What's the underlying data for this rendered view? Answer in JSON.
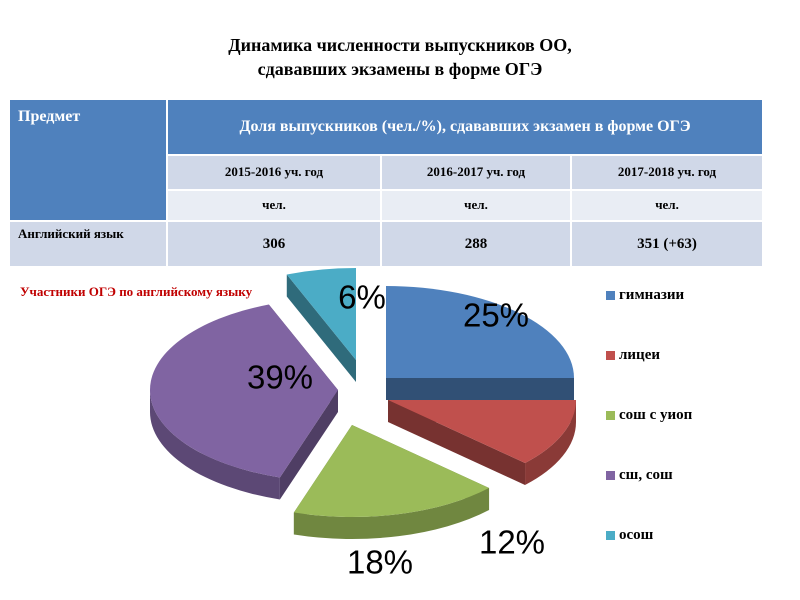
{
  "title": {
    "line1": "Динамика численности выпускников ОО,",
    "line2": "сдававших экзамены в форме ОГЭ"
  },
  "table": {
    "subject_header": "Предмет",
    "main_header": "Доля выпускников (чел./%), сдававших экзамен в форме ОГЭ",
    "years": [
      "2015-2016 уч. год",
      "2016-2017 уч. год",
      "2017-2018 уч. год"
    ],
    "units": [
      "чел.",
      "чел.",
      "чел."
    ],
    "rows": [
      {
        "subject": "Английский язык",
        "values": [
          "306",
          "288",
          "351 (+63)"
        ]
      }
    ]
  },
  "chart_data": {
    "type": "pie",
    "title": "Участники ОГЭ по английскому языку",
    "categories": [
      "гимназии",
      "лицеи",
      "сош с уиоп",
      "сш, сош",
      "осош"
    ],
    "values": [
      25,
      12,
      18,
      39,
      6
    ],
    "data_labels": [
      "25%",
      "12%",
      "18%",
      "39%",
      "6%"
    ],
    "colors": [
      "#4f81bd",
      "#c0504d",
      "#9bbb59",
      "#8064a2",
      "#4bacc6"
    ],
    "legend_placement": "right",
    "style": "3d-exploded"
  }
}
